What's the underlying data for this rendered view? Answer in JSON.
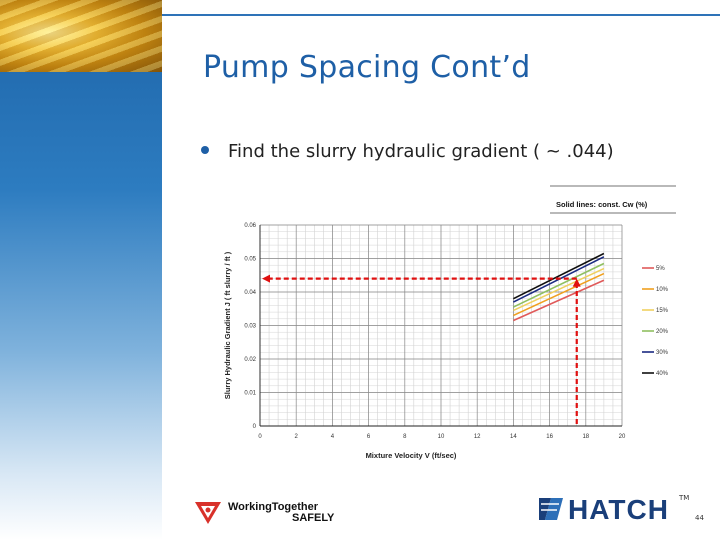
{
  "slide": {
    "title": "Pump Spacing Cont’d",
    "bullet": "Find the slurry hydraulic gradient ( ~ .044)",
    "page_number": "44",
    "footer_logo_line1": "WorkingTogether",
    "footer_logo_line2": "SAFELY",
    "brand": "HATCH",
    "brand_tm": "TM",
    "accent_color": "#1e5fa6"
  },
  "chart_data": {
    "type": "line",
    "legend_title": "Solid lines: const. Cw (%)",
    "xlabel": "Mixture Velocity  V (ft/sec)",
    "ylabel": "Slurry Hydraulic Gradient  J  ( ft slurry / ft )",
    "xlim": [
      0,
      20
    ],
    "ylim": [
      0,
      0.06
    ],
    "x_ticks": [
      "0",
      "2",
      "4",
      "6",
      "8",
      "10",
      "12",
      "14",
      "16",
      "18",
      "20"
    ],
    "y_ticks": [
      "0",
      "0.01",
      "0.02",
      "0.03",
      "0.04",
      "0.05",
      "0.06"
    ],
    "grid": true,
    "legend_position": "right",
    "series": [
      {
        "name": "5%",
        "color": "#e05a5a",
        "x": [
          14,
          19
        ],
        "y": [
          0.0315,
          0.0435
        ]
      },
      {
        "name": "10%",
        "color": "#f0a020",
        "x": [
          14,
          19
        ],
        "y": [
          0.033,
          0.0455
        ]
      },
      {
        "name": "15%",
        "color": "#f0d060",
        "x": [
          14,
          19
        ],
        "y": [
          0.0345,
          0.047
        ]
      },
      {
        "name": "20%",
        "color": "#90c060",
        "x": [
          14,
          19
        ],
        "y": [
          0.0355,
          0.0485
        ]
      },
      {
        "name": "30%",
        "color": "#1a2a80",
        "x": [
          14,
          19
        ],
        "y": [
          0.037,
          0.0505
        ]
      },
      {
        "name": "40%",
        "color": "#101010",
        "x": [
          14,
          19
        ],
        "y": [
          0.038,
          0.0515
        ]
      }
    ],
    "annotation": {
      "x": 17.5,
      "y": 0.044,
      "color": "#e01010"
    }
  }
}
